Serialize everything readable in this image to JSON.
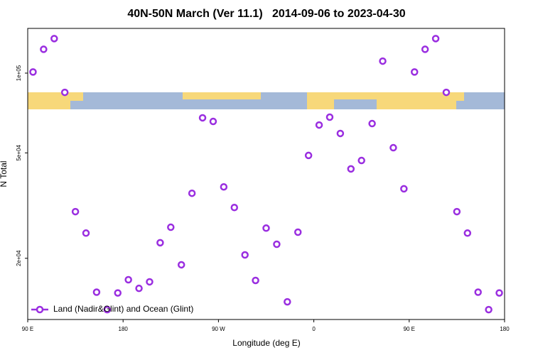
{
  "chart_data": {
    "type": "scatter",
    "title": "40N-50N March (Ver 11.1)   2014-09-06 to 2023-04-30",
    "xlabel": "Longitude (deg E)",
    "ylabel": "N Total",
    "log_y": true,
    "legend": "lower left",
    "xlim": [
      90,
      540
    ],
    "ylim": [
      11750,
      147500
    ],
    "xticks": [
      {
        "value": 90,
        "label": "90 E"
      },
      180,
      {
        "value": 270,
        "label": "90 W"
      },
      {
        "value": 360,
        "label": "0"
      },
      {
        "value": 450,
        "label": "90 E"
      },
      {
        "value": 540,
        "label": "180"
      }
    ],
    "yticks": [
      {
        "value": 100000,
        "label": "1e+05"
      },
      {
        "value": 50000,
        "label": "5e+04"
      },
      {
        "value": 20000,
        "label": "2e+04"
      }
    ],
    "series": [
      {
        "name": "Land (Nadir&Glint) and Ocean (Glint)",
        "color": "#9a2ee0",
        "x": [
          95,
          105,
          115,
          125,
          135,
          145,
          155,
          165,
          175,
          185,
          195,
          205,
          215,
          225,
          235,
          245,
          255,
          265,
          275,
          285,
          295,
          305,
          315,
          325,
          335,
          345,
          355,
          365,
          375,
          385,
          395,
          405,
          415,
          425,
          435,
          445,
          455,
          465,
          475,
          485,
          495,
          505,
          515,
          525,
          535
        ],
        "values": [
          101000,
          123000,
          135000,
          84600,
          30000,
          24900,
          14900,
          12800,
          14800,
          16600,
          15400,
          16300,
          22900,
          26200,
          18900,
          35200,
          67800,
          65700,
          37200,
          31100,
          20600,
          16500,
          26000,
          22600,
          13700,
          25100,
          48900,
          63700,
          68200,
          59200,
          43500,
          46800,
          64500,
          111000,
          52300,
          36600,
          101000,
          123000,
          135000,
          84600,
          30000,
          24900,
          14900,
          12800,
          14800
        ]
      }
    ]
  }
}
